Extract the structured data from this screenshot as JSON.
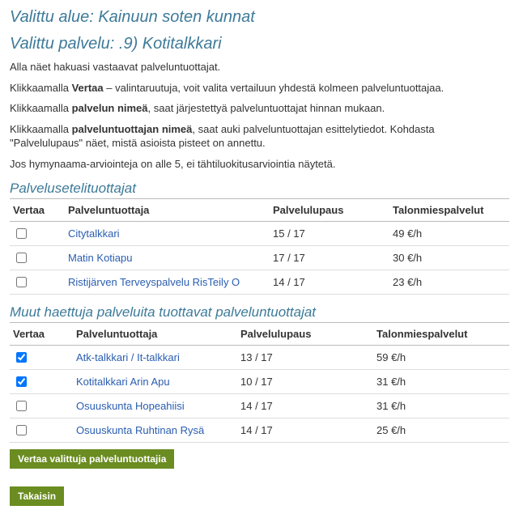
{
  "heading_area": "Valittu alue: Kainuun soten kunnat",
  "heading_service": "Valittu palvelu: .9) Kotitalkkari",
  "intro": {
    "p1": "Alla näet hakuasi vastaavat palveluntuottajat.",
    "p2_pre": "Klikkaamalla ",
    "p2_bold": "Vertaa",
    "p2_post": " – valintaruutuja, voit valita vertailuun yhdestä kolmeen palveluntuottajaa.",
    "p3_pre": "Klikkaamalla ",
    "p3_bold": "palvelun nimeä",
    "p3_post": ", saat järjestettyä palveluntuottajat hinnan mukaan.",
    "p4_pre": "Klikkaamalla ",
    "p4_bold": "palveluntuottajan nimeä",
    "p4_post": ", saat auki palveluntuottajan esittelytiedot. Kohdasta \"Palvelulupaus\" näet, mistä asioista pisteet on annettu.",
    "p5": "Jos hymynaama-arviointeja on alle 5, ei tähtiluokitusarviointia näytetä."
  },
  "table1": {
    "title": "Palvelusetelituottajat",
    "headers": {
      "col1": "Vertaa",
      "col2": "Palveluntuottaja",
      "col3": "Palvelulupaus",
      "col4": "Talonmiespalvelut"
    },
    "rows": [
      {
        "checked": false,
        "name": "Citytalkkari",
        "lupaus": "15 / 17",
        "price": "49 €/h"
      },
      {
        "checked": false,
        "name": "Matin Kotiapu",
        "lupaus": "17 / 17",
        "price": "30 €/h"
      },
      {
        "checked": false,
        "name": "Ristijärven Terveyspalvelu RisTeily O",
        "lupaus": "14 / 17",
        "price": "23 €/h"
      }
    ]
  },
  "table2": {
    "title": "Muut haettuja palveluita tuottavat palveluntuottajat",
    "headers": {
      "col1": "Vertaa",
      "col2": "Palveluntuottaja",
      "col3": "Palvelulupaus",
      "col4": "Talonmiespalvelut"
    },
    "rows": [
      {
        "checked": true,
        "name": "Atk-talkkari / It-talkkari",
        "lupaus": "13 / 17",
        "price": "59 €/h"
      },
      {
        "checked": true,
        "name": "Kotitalkkari Arin Apu",
        "lupaus": "10 / 17",
        "price": "31 €/h"
      },
      {
        "checked": false,
        "name": "Osuuskunta Hopeahiisi",
        "lupaus": "14 / 17",
        "price": "31 €/h"
      },
      {
        "checked": false,
        "name": "Osuuskunta Ruhtinan Rysä",
        "lupaus": "14 / 17",
        "price": "25 €/h"
      }
    ]
  },
  "buttons": {
    "compare": "Vertaa valittuja palveluntuottajia",
    "back": "Takaisin"
  },
  "colors": {
    "accent": "#3d7a99",
    "link": "#2a5db0",
    "button_bg": "#6b8c21",
    "border": "#bbb",
    "row_border": "#ddd"
  }
}
